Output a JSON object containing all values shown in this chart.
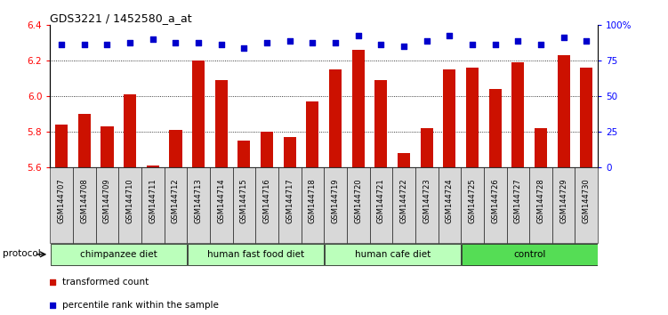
{
  "title": "GDS3221 / 1452580_a_at",
  "samples": [
    "GSM144707",
    "GSM144708",
    "GSM144709",
    "GSM144710",
    "GSM144711",
    "GSM144712",
    "GSM144713",
    "GSM144714",
    "GSM144715",
    "GSM144716",
    "GSM144717",
    "GSM144718",
    "GSM144719",
    "GSM144720",
    "GSM144721",
    "GSM144722",
    "GSM144723",
    "GSM144724",
    "GSM144725",
    "GSM144726",
    "GSM144727",
    "GSM144728",
    "GSM144729",
    "GSM144730"
  ],
  "bar_values": [
    5.84,
    5.9,
    5.83,
    6.01,
    5.61,
    5.81,
    6.2,
    6.09,
    5.75,
    5.8,
    5.77,
    5.97,
    6.15,
    6.26,
    6.09,
    5.68,
    5.82,
    6.15,
    6.16,
    6.04,
    6.19,
    5.82,
    6.23,
    6.16
  ],
  "percentile_values": [
    6.29,
    6.29,
    6.29,
    6.3,
    6.32,
    6.3,
    6.3,
    6.29,
    6.27,
    6.3,
    6.31,
    6.3,
    6.3,
    6.34,
    6.29,
    6.28,
    6.31,
    6.34,
    6.29,
    6.29,
    6.31,
    6.29,
    6.33,
    6.31
  ],
  "groups": [
    {
      "label": "chimpanzee diet",
      "start": 0,
      "end": 6,
      "color": "#bbffbb"
    },
    {
      "label": "human fast food diet",
      "start": 6,
      "end": 12,
      "color": "#bbffbb"
    },
    {
      "label": "human cafe diet",
      "start": 12,
      "end": 18,
      "color": "#bbffbb"
    },
    {
      "label": "control",
      "start": 18,
      "end": 24,
      "color": "#55dd55"
    }
  ],
  "bar_color": "#cc1100",
  "dot_color": "#0000cc",
  "ylim_left": [
    5.6,
    6.4
  ],
  "ylim_right": [
    0,
    100
  ],
  "yticks_left": [
    5.6,
    5.8,
    6.0,
    6.2,
    6.4
  ],
  "yticks_right": [
    0,
    25,
    50,
    75,
    100
  ],
  "ytick_labels_right": [
    "0",
    "25",
    "50",
    "75",
    "100%"
  ],
  "grid_values": [
    5.8,
    6.0,
    6.2
  ],
  "legend_items": [
    {
      "label": "transformed count",
      "color": "#cc1100"
    },
    {
      "label": "percentile rank within the sample",
      "color": "#0000cc"
    }
  ],
  "protocol_label": "protocol"
}
